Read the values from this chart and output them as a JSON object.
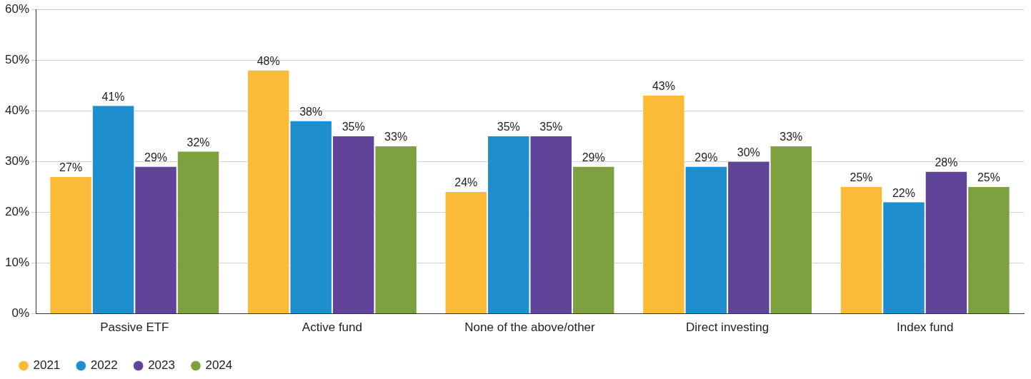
{
  "chart_data": {
    "type": "bar",
    "categories": [
      "Passive ETF",
      "Active fund",
      "None of the above/other",
      "Direct investing",
      "Index fund"
    ],
    "series": [
      {
        "name": "2021",
        "color": "#fbbb38",
        "values": [
          27,
          48,
          24,
          43,
          25
        ],
        "value_labels": [
          "27%",
          "48%",
          "24%",
          "43%",
          "25%"
        ]
      },
      {
        "name": "2022",
        "color": "#1f8ecf",
        "values": [
          41,
          38,
          35,
          29,
          22
        ],
        "value_labels": [
          "41%",
          "38%",
          "35%",
          "29%",
          "22%"
        ]
      },
      {
        "name": "2023",
        "color": "#5f4499",
        "values": [
          29,
          35,
          35,
          30,
          28
        ],
        "value_labels": [
          "29%",
          "35%",
          "35%",
          "30%",
          "28%"
        ]
      },
      {
        "name": "2024",
        "color": "#7ea13f",
        "values": [
          32,
          33,
          29,
          33,
          25
        ],
        "value_labels": [
          "32%",
          "33%",
          "29%",
          "33%",
          "25%"
        ]
      }
    ],
    "ylim": [
      0,
      60
    ],
    "yticks": [
      {
        "value": 0,
        "label": "0%"
      },
      {
        "value": 10,
        "label": "10%"
      },
      {
        "value": 20,
        "label": "20%"
      },
      {
        "value": 30,
        "label": "30%"
      },
      {
        "value": 40,
        "label": "40%"
      },
      {
        "value": 50,
        "label": "50%"
      },
      {
        "value": 60,
        "label": "60%"
      }
    ],
    "grid": "y",
    "legend": "bottom left",
    "marker": "circle"
  }
}
